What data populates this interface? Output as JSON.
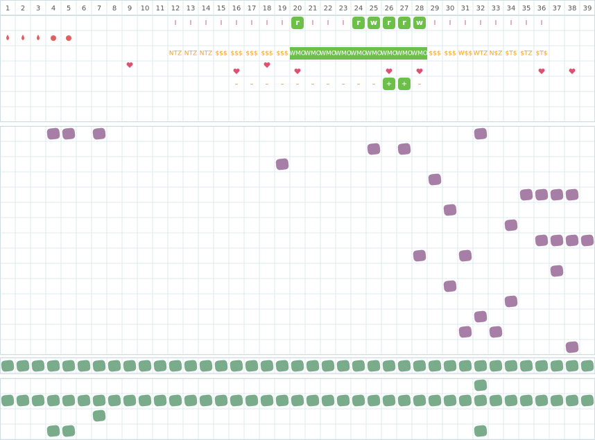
{
  "header": {
    "columns": [
      1,
      2,
      3,
      4,
      5,
      6,
      7,
      8,
      9,
      10,
      11,
      12,
      13,
      14,
      15,
      16,
      17,
      18,
      19,
      20,
      21,
      22,
      23,
      24,
      25,
      26,
      27,
      28,
      29,
      30,
      31,
      32,
      33,
      34,
      35,
      36,
      37,
      38,
      39
    ]
  },
  "rows": {
    "marks": [
      null,
      null,
      null,
      null,
      null,
      null,
      null,
      null,
      null,
      null,
      null,
      "I",
      "I",
      "I",
      "I",
      "I",
      "I",
      "I",
      "I",
      "r",
      "I",
      "I",
      "I",
      "r",
      "w",
      "r",
      "r",
      "w",
      "I",
      "I",
      "I",
      "I",
      "I",
      "I",
      "I",
      "I",
      null,
      null,
      null
    ],
    "codes": [
      null,
      null,
      null,
      null,
      null,
      null,
      null,
      null,
      null,
      null,
      null,
      "NTZ",
      "NTZ",
      "NTZ",
      "$$$",
      "$$$",
      "$$$",
      "$$$",
      "$$$",
      "WMO",
      "WMO",
      "WMO",
      "WMO",
      "WMO",
      "WMO",
      "WMO",
      "WMO",
      "WMO",
      "$$$",
      "$$$",
      "W$$",
      "WTZ",
      "N$Z",
      "$T$",
      "$TZ",
      "$T$",
      null,
      null,
      null
    ],
    "dashes": [
      null,
      null,
      null,
      null,
      null,
      null,
      null,
      null,
      null,
      null,
      null,
      null,
      null,
      null,
      null,
      "–",
      "–",
      "–",
      "–",
      "–",
      "–",
      "–",
      "–",
      "–",
      "–",
      "+",
      "+",
      "–",
      null,
      null,
      null,
      null,
      null,
      null,
      null,
      null,
      null,
      null,
      null
    ]
  }
}
